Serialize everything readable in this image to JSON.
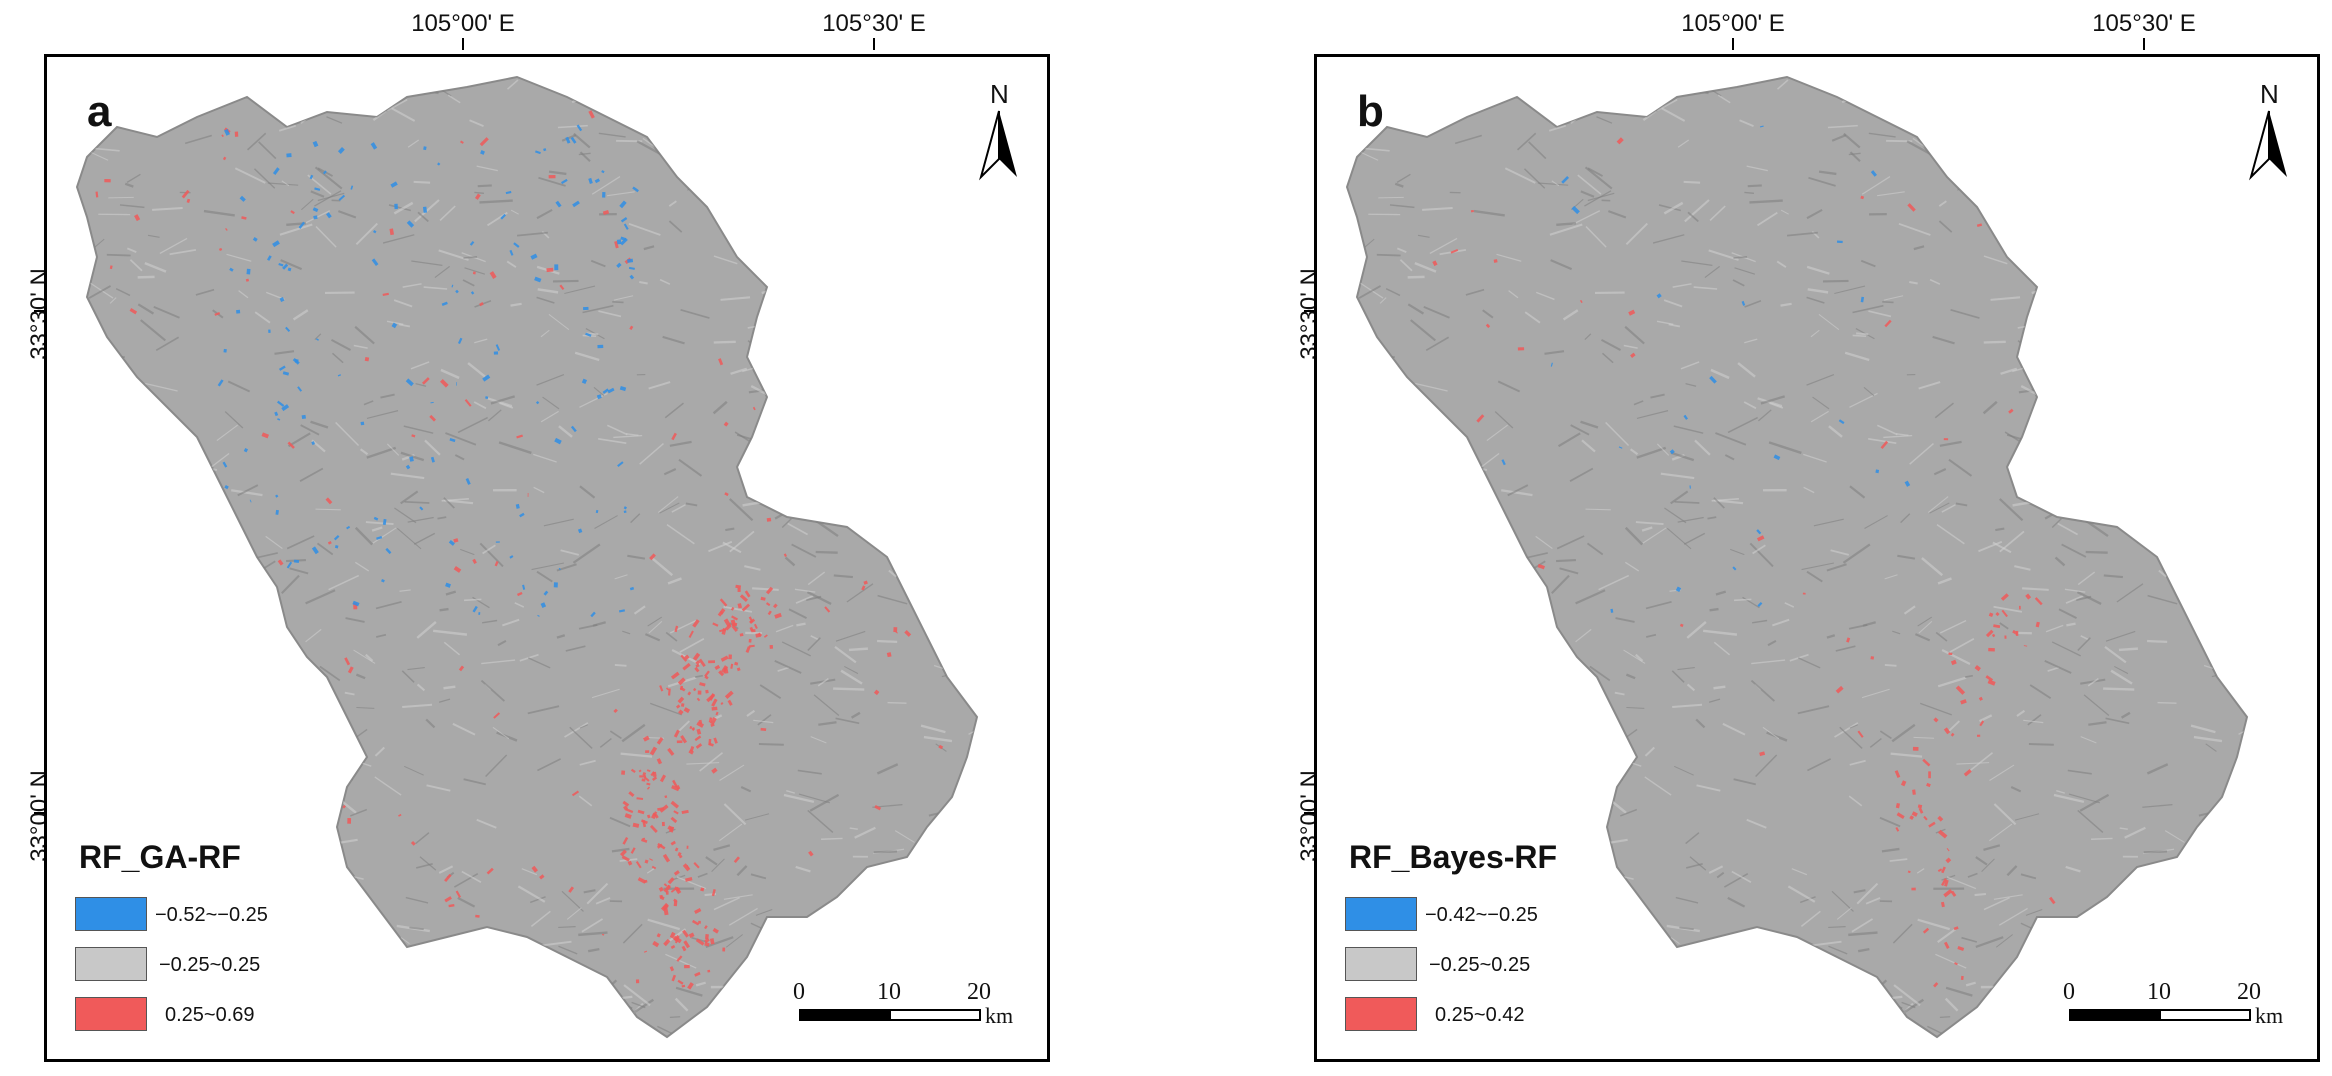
{
  "colors": {
    "negative": "#2f8fe6",
    "neutral": "#c8c8c8",
    "positive": "#f05a5a",
    "terrain": "#a9a9a9",
    "frame": "#000000"
  },
  "graticule": {
    "lon_labels": [
      "105°00' E",
      "105°30' E"
    ],
    "lat_labels": [
      "33°30' N",
      "33°00' N"
    ]
  },
  "north": {
    "letter": "N",
    "icon": "north-arrow-icon"
  },
  "scalebar": {
    "ticks": [
      "0",
      "10",
      "20"
    ],
    "unit": "km"
  },
  "panels": [
    {
      "letter": "a",
      "legend_title": "RF_GA-RF",
      "legend": [
        {
          "label": "−0.52~−0.25",
          "class": "negative"
        },
        {
          "label": "−0.25~0.25",
          "class": "neutral"
        },
        {
          "label": "0.25~0.69",
          "class": "positive"
        }
      ],
      "intensity": 1.0
    },
    {
      "letter": "b",
      "legend_title": "RF_Bayes-RF",
      "legend": [
        {
          "label": "−0.42~−0.25",
          "class": "negative"
        },
        {
          "label": "−0.25~0.25",
          "class": "neutral"
        },
        {
          "label": "0.25~0.42",
          "class": "positive"
        }
      ],
      "intensity": 0.3
    }
  ]
}
